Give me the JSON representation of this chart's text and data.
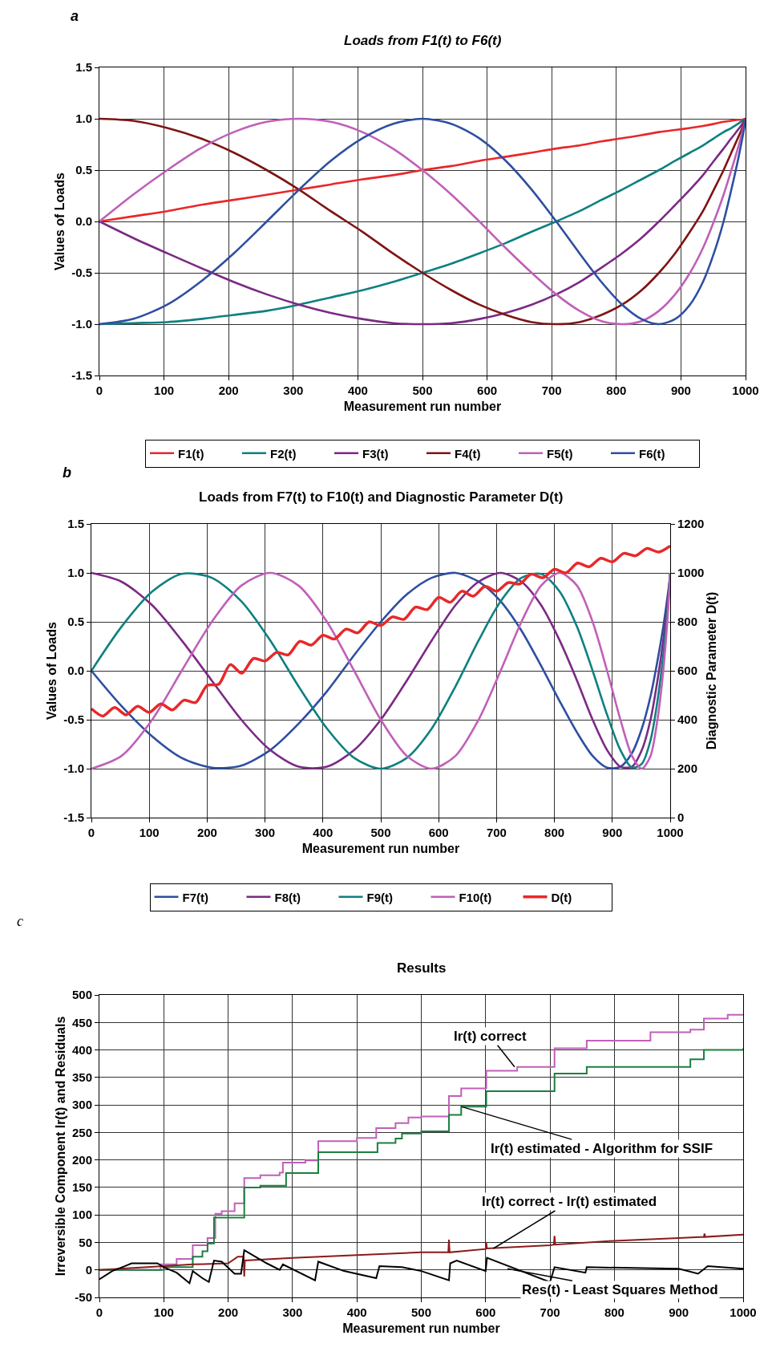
{
  "chart_data": [
    {
      "type": "line",
      "title": "Loads from F1(t) to F6(t)",
      "xlabel": "Measurement run number",
      "ylabel": "Values of Loads",
      "annotations": [
        "a"
      ],
      "x": [
        0,
        52,
        105,
        156,
        208,
        259,
        309,
        358,
        407,
        454,
        500,
        545,
        588,
        629,
        669,
        707,
        743,
        777,
        809,
        839,
        866,
        891,
        914,
        934,
        951,
        966,
        978,
        988,
        995,
        999,
        1000
      ],
      "series": [
        {
          "name": "F1(t)",
          "color": "#e8282a",
          "values": [
            0,
            0.05,
            0.1,
            0.16,
            0.21,
            0.26,
            0.31,
            0.36,
            0.41,
            0.45,
            0.5,
            0.54,
            0.59,
            0.63,
            0.67,
            0.71,
            0.74,
            0.78,
            0.81,
            0.84,
            0.87,
            0.89,
            0.91,
            0.93,
            0.95,
            0.97,
            0.98,
            0.99,
            0.99,
            1.0,
            1
          ]
        },
        {
          "name": "F2(t)",
          "color": "#0f8080",
          "values": [
            -1,
            -0.99,
            -0.98,
            -0.95,
            -0.91,
            -0.87,
            -0.81,
            -0.74,
            -0.67,
            -0.59,
            -0.5,
            -0.41,
            -0.31,
            -0.21,
            -0.1,
            0,
            0.1,
            0.21,
            0.31,
            0.41,
            0.5,
            0.59,
            0.67,
            0.74,
            0.81,
            0.87,
            0.91,
            0.95,
            0.98,
            0.99,
            1
          ]
        },
        {
          "name": "F3(t)",
          "color": "#7b2a84",
          "values": [
            0,
            -0.16,
            -0.31,
            -0.45,
            -0.59,
            -0.71,
            -0.81,
            -0.89,
            -0.95,
            -0.99,
            -1,
            -0.99,
            -0.95,
            -0.89,
            -0.81,
            -0.71,
            -0.59,
            -0.45,
            -0.31,
            -0.16,
            0,
            0.16,
            0.31,
            0.45,
            0.59,
            0.71,
            0.81,
            0.89,
            0.95,
            0.99,
            1
          ]
        },
        {
          "name": "F4(t)",
          "color": "#7f1414",
          "values": [
            1,
            0.98,
            0.91,
            0.81,
            0.67,
            0.5,
            0.31,
            0.1,
            -0.1,
            -0.31,
            -0.5,
            -0.67,
            -0.81,
            -0.91,
            -0.98,
            -1,
            -0.98,
            -0.91,
            -0.81,
            -0.67,
            -0.5,
            -0.31,
            -0.1,
            0.1,
            0.31,
            0.5,
            0.67,
            0.81,
            0.91,
            0.98,
            1
          ]
        },
        {
          "name": "F5(t)",
          "color": "#c060b8",
          "values": [
            0,
            0.26,
            0.5,
            0.71,
            0.87,
            0.97,
            1,
            0.97,
            0.87,
            0.71,
            0.5,
            0.26,
            0,
            -0.26,
            -0.5,
            -0.71,
            -0.87,
            -0.97,
            -1,
            -0.97,
            -0.87,
            -0.71,
            -0.5,
            -0.26,
            0,
            0.26,
            0.5,
            0.71,
            0.87,
            0.97,
            1
          ]
        },
        {
          "name": "F6(t)",
          "color": "#2e4fa0",
          "values": [
            -1,
            -0.95,
            -0.81,
            -0.59,
            -0.31,
            0,
            0.31,
            0.59,
            0.81,
            0.95,
            1,
            0.95,
            0.81,
            0.59,
            0.31,
            0,
            -0.31,
            -0.59,
            -0.81,
            -0.95,
            -1,
            -0.95,
            -0.81,
            -0.59,
            -0.31,
            0,
            0.31,
            0.59,
            0.81,
            0.95,
            1
          ]
        }
      ],
      "xlim": [
        0,
        1000
      ],
      "xticks": [
        0,
        100,
        200,
        300,
        400,
        500,
        600,
        700,
        800,
        900,
        1000
      ],
      "ylim": [
        -1.5,
        1.5
      ],
      "yticks": [
        -1.5,
        {
          "value": -1,
          "label": "-1.0"
        },
        -0.5,
        {
          "value": 0,
          "label": "0.0"
        },
        0.5,
        {
          "value": 1,
          "label": "1.0"
        },
        1.5
      ],
      "grid": true,
      "legend": "bottom"
    },
    {
      "type": "line",
      "title": "Loads from F7(t) to F10(t) and Diagnostic Parameter D(t)",
      "xlabel": "Measurement run number",
      "ylabel": "Values of Loads",
      "y2label": "Diagnostic Parameter D(t)",
      "annotations": [
        "b"
      ],
      "x": [
        0,
        52,
        105,
        156,
        208,
        259,
        309,
        358,
        407,
        454,
        500,
        545,
        588,
        629,
        669,
        707,
        743,
        777,
        809,
        839,
        866,
        891,
        914,
        934,
        951,
        966,
        978,
        988,
        995,
        999,
        1000
      ],
      "series": [
        {
          "name": "F7(t)",
          "color": "#2e4fa0",
          "values": [
            0,
            -0.36,
            -0.67,
            -0.89,
            -0.99,
            -0.97,
            -0.81,
            -0.54,
            -0.21,
            0.16,
            0.5,
            0.78,
            0.95,
            1.0,
            0.91,
            0.71,
            0.41,
            0.05,
            -0.31,
            -0.63,
            -0.87,
            -0.99,
            -0.98,
            -0.84,
            -0.59,
            -0.26,
            0.1,
            0.45,
            0.74,
            0.93,
            1
          ]
        },
        {
          "name": "F8(t)",
          "color": "#7b2a84",
          "values": [
            1,
            0.91,
            0.67,
            0.31,
            -0.1,
            -0.5,
            -0.81,
            -0.98,
            -0.98,
            -0.81,
            -0.5,
            -0.1,
            0.31,
            0.67,
            0.91,
            1,
            0.91,
            0.67,
            0.31,
            -0.1,
            -0.5,
            -0.81,
            -0.98,
            -0.98,
            -0.81,
            -0.5,
            -0.1,
            0.31,
            0.67,
            0.91,
            1
          ]
        },
        {
          "name": "F9(t)",
          "color": "#0f8080",
          "values": [
            0,
            0.45,
            0.81,
            0.99,
            0.95,
            0.71,
            0.31,
            -0.16,
            -0.59,
            -0.89,
            -1,
            -0.89,
            -0.59,
            -0.16,
            0.31,
            0.71,
            0.95,
            0.99,
            0.81,
            0.45,
            0,
            -0.45,
            -0.81,
            -0.99,
            -0.95,
            -0.71,
            -0.31,
            0.16,
            0.59,
            0.89,
            1
          ]
        },
        {
          "name": "F10(t)",
          "color": "#c060b8",
          "values": [
            -1,
            -0.87,
            -0.5,
            0,
            0.5,
            0.87,
            1,
            0.87,
            0.5,
            0,
            -0.5,
            -0.87,
            -1,
            -0.87,
            -0.5,
            0,
            0.5,
            0.87,
            1,
            0.87,
            0.5,
            0,
            -0.5,
            -0.87,
            -1,
            -0.87,
            -0.5,
            0,
            0.5,
            0.87,
            1
          ]
        },
        {
          "name": "D(t)",
          "color": "#e8282a",
          "axis": "y2",
          "x": [
            0,
            20,
            40,
            60,
            80,
            100,
            120,
            140,
            160,
            180,
            200,
            220,
            240,
            260,
            280,
            300,
            320,
            340,
            360,
            380,
            400,
            420,
            440,
            460,
            480,
            500,
            520,
            540,
            560,
            580,
            600,
            620,
            640,
            660,
            680,
            700,
            720,
            740,
            760,
            780,
            800,
            820,
            840,
            860,
            880,
            900,
            920,
            940,
            960,
            980,
            1000
          ],
          "values": [
            445,
            415,
            450,
            420,
            455,
            430,
            465,
            440,
            480,
            470,
            540,
            545,
            625,
            590,
            650,
            640,
            675,
            665,
            720,
            705,
            745,
            730,
            770,
            755,
            800,
            785,
            820,
            810,
            860,
            850,
            900,
            880,
            925,
            905,
            945,
            925,
            960,
            955,
            995,
            980,
            1015,
            1000,
            1040,
            1025,
            1060,
            1045,
            1080,
            1070,
            1100,
            1085,
            1110
          ]
        }
      ],
      "xlim": [
        0,
        1000
      ],
      "xticks": [
        0,
        100,
        200,
        300,
        400,
        500,
        600,
        700,
        800,
        900,
        1000
      ],
      "ylim": [
        -1.5,
        1.5
      ],
      "yticks": [
        -1.5,
        {
          "value": -1,
          "label": "-1.0"
        },
        -0.5,
        {
          "value": 0,
          "label": "0.0"
        },
        0.5,
        {
          "value": 1,
          "label": "1.0"
        },
        1.5
      ],
      "y2lim": [
        0,
        1200
      ],
      "y2ticks": [
        0,
        200,
        400,
        600,
        800,
        1000,
        1200
      ],
      "grid": true,
      "legend": "bottom"
    },
    {
      "type": "line",
      "title": "Results",
      "xlabel": "Measurement run number",
      "ylabel": "Irreversible Component Ir(t) and Residuals",
      "annotations": [
        "c",
        {
          "text": "Ir(t) correct",
          "x": 645,
          "y": 369
        },
        {
          "text": "Ir(t) estimated - Algorithm for SSIF",
          "x": 562,
          "y": 297
        },
        {
          "text": "Ir(t) correct - Ir(t) estimated",
          "x": 612,
          "y": 39
        },
        {
          "text": "Res(t) - Least Squares Method",
          "x": 634,
          "y": 2
        }
      ],
      "series": [
        {
          "type": "step",
          "color": "#c060b8",
          "x": [
            0,
            95,
            120,
            145,
            168,
            180,
            190,
            210,
            225,
            250,
            280,
            285,
            320,
            340,
            400,
            430,
            460,
            480,
            500,
            543,
            562,
            601,
            649,
            707,
            757,
            856,
            918,
            939,
            976,
            1000
          ],
          "values": [
            0,
            10,
            20,
            45,
            58,
            102,
            107,
            121,
            167,
            172,
            177,
            195,
            199,
            234,
            240,
            258,
            267,
            277,
            279,
            316,
            330,
            362,
            369,
            403,
            417,
            432,
            437,
            457,
            464,
            465
          ]
        },
        {
          "type": "step",
          "color": "#1a8040",
          "x": [
            0,
            100,
            145,
            160,
            168,
            178,
            225,
            250,
            290,
            340,
            432,
            460,
            470,
            500,
            543,
            562,
            601,
            707,
            757,
            918,
            939,
            1000
          ],
          "values": [
            0,
            5,
            24,
            34,
            48,
            95,
            150,
            153,
            176,
            214,
            231,
            239,
            248,
            252,
            282,
            297,
            325,
            357,
            369,
            383,
            400,
            403
          ]
        },
        {
          "type": "line",
          "color": "#8b1a1a",
          "x": [
            0,
            100,
            145,
            200,
            215,
            224,
            225,
            226,
            300,
            400,
            500,
            542,
            543,
            544,
            600,
            601,
            602,
            700,
            706,
            707,
            708,
            800,
            900,
            939,
            940,
            941,
            1000
          ],
          "values": [
            0,
            7,
            10,
            12,
            24,
            24,
            -12,
            17,
            22,
            27,
            32,
            32,
            55,
            32,
            38,
            50,
            39,
            45,
            46,
            62,
            46,
            53,
            58,
            60,
            66,
            60,
            64
          ]
        },
        {
          "type": "line",
          "color": "#000000",
          "x": [
            0,
            20,
            40,
            50,
            90,
            100,
            120,
            140,
            145,
            160,
            170,
            178,
            190,
            210,
            220,
            225,
            260,
            280,
            285,
            335,
            340,
            380,
            430,
            435,
            470,
            500,
            543,
            545,
            555,
            600,
            602,
            700,
            707,
            755,
            757,
            900,
            930,
            945,
            1000
          ],
          "values": [
            -17,
            -2,
            7,
            12,
            12,
            5,
            -5,
            -24,
            -2,
            -15,
            -22,
            17,
            15,
            -7,
            -7,
            36,
            12,
            0,
            10,
            -19,
            15,
            -2,
            -15,
            7,
            5,
            -2,
            -19,
            12,
            17,
            -2,
            22,
            -22,
            5,
            -5,
            5,
            2,
            -7,
            7,
            2
          ]
        }
      ],
      "xlim": [
        0,
        1000
      ],
      "xticks": [
        0,
        100,
        200,
        300,
        400,
        500,
        600,
        700,
        800,
        900,
        1000
      ],
      "ylim": [
        -50,
        500
      ],
      "yticks": [
        -50,
        0,
        50,
        100,
        150,
        200,
        250,
        300,
        350,
        400,
        450,
        500
      ],
      "grid": true
    }
  ]
}
